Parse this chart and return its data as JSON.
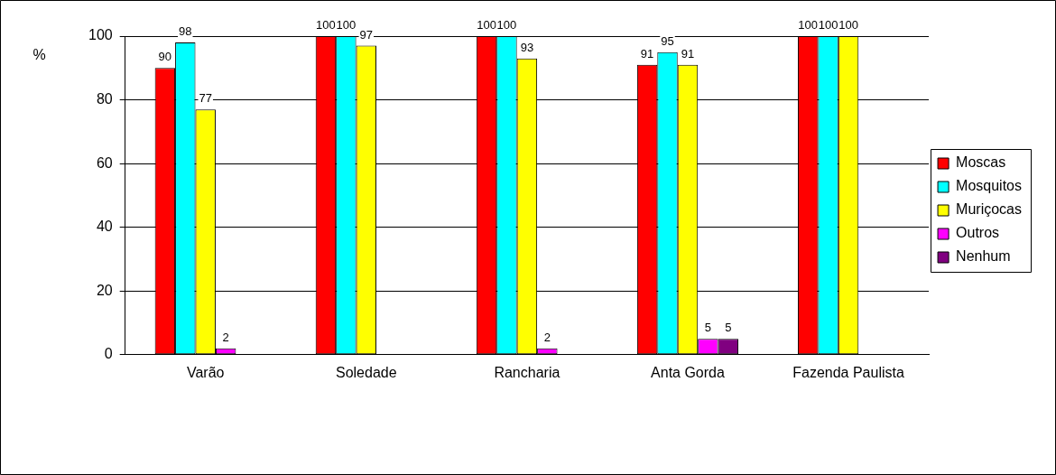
{
  "chart_data": {
    "type": "bar",
    "ylabel": "%",
    "categories": [
      "Varão",
      "Soledade",
      "Rancharia",
      "Anta Gorda",
      "Fazenda Paulista"
    ],
    "series": [
      {
        "name": "Moscas",
        "color": "#ff0000",
        "values": [
          90,
          100,
          100,
          91,
          100
        ]
      },
      {
        "name": "Mosquitos",
        "color": "#00ffff",
        "values": [
          98,
          100,
          100,
          95,
          100
        ]
      },
      {
        "name": "Muriçocas",
        "color": "#ffff00",
        "values": [
          77,
          97,
          93,
          91,
          100
        ]
      },
      {
        "name": "Outros",
        "color": "#ff00ff",
        "values": [
          2,
          null,
          2,
          5,
          null
        ]
      },
      {
        "name": "Nenhum",
        "color": "#800080",
        "values": [
          null,
          null,
          null,
          5,
          null
        ]
      }
    ],
    "ylim": [
      0,
      100
    ],
    "yticks": [
      0,
      20,
      40,
      60,
      80,
      100
    ],
    "grid": "y",
    "legend": "right",
    "data_labels": true
  }
}
